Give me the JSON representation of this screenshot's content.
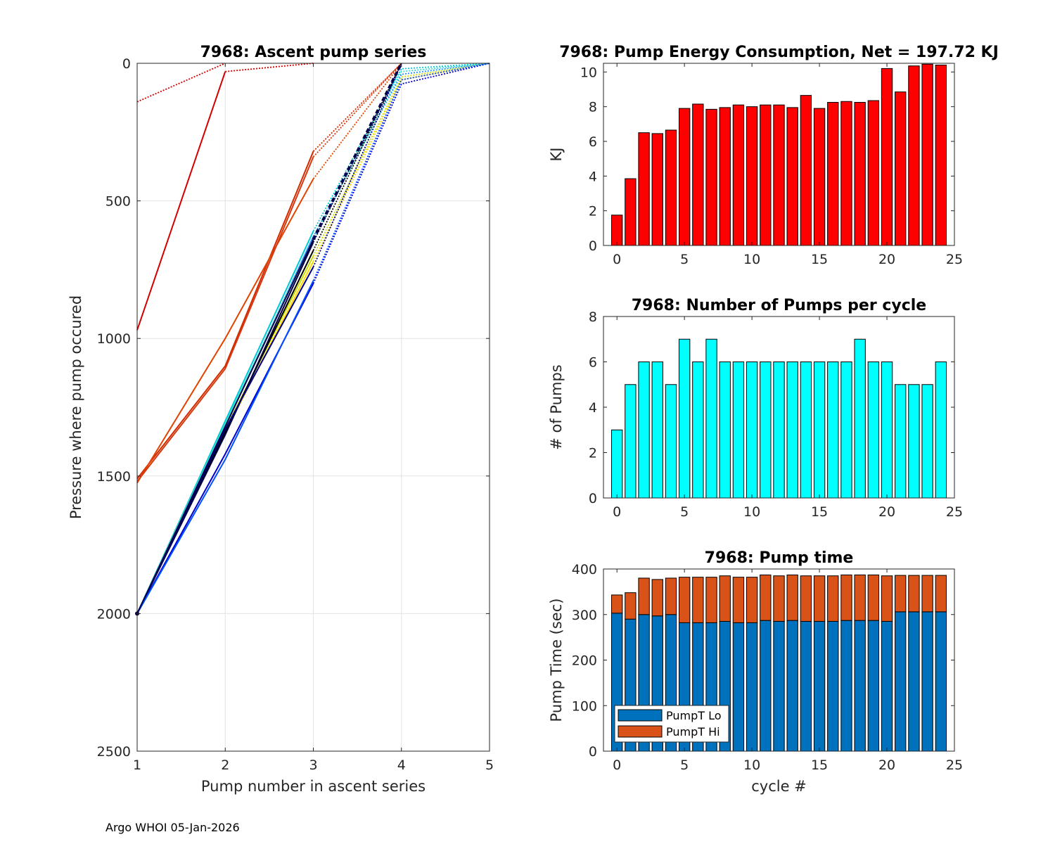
{
  "footer": "Argo WHOI 05-Jan-2026",
  "chart_data": [
    {
      "id": "ascent",
      "type": "line",
      "title": "7968: Ascent pump series",
      "xlabel": "Pump number in ascent series",
      "ylabel": "Pressure where pump occured",
      "xlim": [
        1,
        5
      ],
      "ylim": [
        0,
        2500
      ],
      "y_reversed": true,
      "xticks": [
        1,
        2,
        3,
        4,
        5
      ],
      "yticks": [
        0,
        500,
        1000,
        1500,
        2000,
        2500
      ],
      "grid": true,
      "series": [
        {
          "color": "#d40000",
          "x": [
            1,
            2
          ],
          "y": [
            970,
            30
          ],
          "style": "solid"
        },
        {
          "color": "#d40000",
          "x": [
            2,
            3
          ],
          "y": [
            30,
            0
          ],
          "style": "dotted"
        },
        {
          "color": "#d40000",
          "x": [
            1,
            2
          ],
          "y": [
            140,
            0
          ],
          "style": "dotted"
        },
        {
          "color": "#d42a00",
          "x": [
            1,
            2,
            3
          ],
          "y": [
            1510,
            1100,
            320
          ],
          "style": "solid"
        },
        {
          "color": "#d42a00",
          "x": [
            3,
            4
          ],
          "y": [
            320,
            0
          ],
          "style": "dotted"
        },
        {
          "color": "#e04400",
          "x": [
            1,
            2,
            3
          ],
          "y": [
            1525,
            1000,
            420
          ],
          "style": "solid"
        },
        {
          "color": "#e04400",
          "x": [
            3,
            4
          ],
          "y": [
            420,
            0
          ],
          "style": "dotted"
        },
        {
          "color": "#d43a10",
          "x": [
            1,
            2,
            3
          ],
          "y": [
            1520,
            1110,
            340
          ],
          "style": "solid"
        },
        {
          "color": "#d43a10",
          "x": [
            3,
            4
          ],
          "y": [
            340,
            0
          ],
          "style": "dotted"
        },
        {
          "color": "#00c8d4",
          "x": [
            1,
            2,
            3
          ],
          "y": [
            2000,
            1300,
            610
          ],
          "style": "solid"
        },
        {
          "color": "#00c8d4",
          "x": [
            3,
            4,
            5
          ],
          "y": [
            610,
            20,
            0
          ],
          "style": "dotted"
        },
        {
          "color": "#1e90ff",
          "x": [
            1,
            2,
            3
          ],
          "y": [
            2000,
            1320,
            630
          ],
          "style": "solid"
        },
        {
          "color": "#1e90ff",
          "x": [
            3,
            4,
            5
          ],
          "y": [
            630,
            40,
            0
          ],
          "style": "dotted"
        },
        {
          "color": "#40e0d0",
          "x": [
            1,
            2,
            3
          ],
          "y": [
            2000,
            1310,
            640
          ],
          "style": "solid"
        },
        {
          "color": "#40e0d0",
          "x": [
            3,
            4,
            5
          ],
          "y": [
            640,
            30,
            0
          ],
          "style": "dotted"
        },
        {
          "color": "#c8e000",
          "x": [
            1,
            2,
            3
          ],
          "y": [
            2000,
            1330,
            700
          ],
          "style": "solid"
        },
        {
          "color": "#c8e000",
          "x": [
            3,
            4,
            5
          ],
          "y": [
            700,
            50,
            0
          ],
          "style": "dotted"
        },
        {
          "color": "#ffd700",
          "x": [
            1,
            2,
            3
          ],
          "y": [
            2000,
            1340,
            720
          ],
          "style": "solid"
        },
        {
          "color": "#ffd700",
          "x": [
            3,
            4,
            5
          ],
          "y": [
            720,
            60,
            0
          ],
          "style": "dotted"
        },
        {
          "color": "#000000",
          "x": [
            1,
            2,
            3
          ],
          "y": [
            2000,
            1340,
            680
          ],
          "style": "solid"
        },
        {
          "color": "#000000",
          "x": [
            3,
            4
          ],
          "y": [
            680,
            0
          ],
          "style": "dotted"
        },
        {
          "color": "#000040",
          "x": [
            1,
            2,
            3
          ],
          "y": [
            2000,
            1350,
            650
          ],
          "style": "solid"
        },
        {
          "color": "#000040",
          "x": [
            3,
            4
          ],
          "y": [
            650,
            0
          ],
          "style": "dotted"
        },
        {
          "color": "#000080",
          "x": [
            1,
            2,
            3
          ],
          "y": [
            2000,
            1330,
            740
          ],
          "style": "solid"
        },
        {
          "color": "#000080",
          "x": [
            3,
            4
          ],
          "y": [
            740,
            0
          ],
          "style": "dotted"
        },
        {
          "color": "#0000cd",
          "x": [
            1,
            2,
            3
          ],
          "y": [
            2000,
            1420,
            800
          ],
          "style": "solid"
        },
        {
          "color": "#0000cd",
          "x": [
            3,
            4,
            5
          ],
          "y": [
            800,
            75,
            0
          ],
          "style": "dotted"
        },
        {
          "color": "#0050ff",
          "x": [
            1,
            2,
            3
          ],
          "y": [
            2000,
            1440,
            790
          ],
          "style": "solid"
        },
        {
          "color": "#0050ff",
          "x": [
            3,
            4,
            5
          ],
          "y": [
            790,
            60,
            0
          ],
          "style": "dotted"
        },
        {
          "color": "#000050",
          "x": [
            1,
            2,
            3
          ],
          "y": [
            2000,
            1320,
            640
          ],
          "style": "solid"
        },
        {
          "color": "#000050",
          "x": [
            3,
            4
          ],
          "y": [
            640,
            0
          ],
          "style": "dashed"
        }
      ]
    },
    {
      "id": "energy",
      "type": "bar",
      "title": "7968: Pump Energy Consumption,  Net = 197.72 KJ",
      "xlabel": "",
      "ylabel": "KJ",
      "xlim": [
        -1,
        25
      ],
      "ylim": [
        0,
        10.5
      ],
      "xticks": [
        0,
        5,
        10,
        15,
        20,
        25
      ],
      "yticks": [
        0,
        2,
        4,
        6,
        8,
        10
      ],
      "color": "#ff0000",
      "categories": [
        0,
        1,
        2,
        3,
        4,
        5,
        6,
        7,
        8,
        9,
        10,
        11,
        12,
        13,
        14,
        15,
        16,
        17,
        18,
        19,
        20,
        21,
        22,
        23,
        24
      ],
      "values": [
        1.75,
        3.85,
        6.5,
        6.45,
        6.65,
        7.9,
        8.15,
        7.85,
        7.95,
        8.1,
        8.0,
        8.1,
        8.1,
        7.95,
        8.65,
        7.9,
        8.25,
        8.3,
        8.25,
        8.35,
        10.2,
        8.85,
        10.35,
        10.45,
        10.4
      ]
    },
    {
      "id": "pumps",
      "type": "bar",
      "title": "7968: Number of Pumps per cycle",
      "xlabel": "",
      "ylabel": "# of Pumps",
      "xlim": [
        -1,
        25
      ],
      "ylim": [
        0,
        8
      ],
      "xticks": [
        0,
        5,
        10,
        15,
        20,
        25
      ],
      "yticks": [
        0,
        2,
        4,
        6,
        8
      ],
      "color": "#00ffff",
      "categories": [
        0,
        1,
        2,
        3,
        4,
        5,
        6,
        7,
        8,
        9,
        10,
        11,
        12,
        13,
        14,
        15,
        16,
        17,
        18,
        19,
        20,
        21,
        22,
        23,
        24
      ],
      "values": [
        3,
        5,
        6,
        6,
        5,
        7,
        6,
        7,
        6,
        6,
        6,
        6,
        6,
        6,
        6,
        6,
        6,
        6,
        7,
        6,
        6,
        5,
        5,
        5,
        6
      ]
    },
    {
      "id": "pumptime",
      "type": "bar",
      "stacked": true,
      "title": "7968: Pump time",
      "xlabel": "cycle #",
      "ylabel": "Pump Time (sec)",
      "xlim": [
        -1,
        25
      ],
      "ylim": [
        0,
        400
      ],
      "xticks": [
        0,
        5,
        10,
        15,
        20,
        25
      ],
      "yticks": [
        0,
        100,
        200,
        300,
        400
      ],
      "legend_position": "bottom-left",
      "categories": [
        0,
        1,
        2,
        3,
        4,
        5,
        6,
        7,
        8,
        9,
        10,
        11,
        12,
        13,
        14,
        15,
        16,
        17,
        18,
        19,
        20,
        21,
        22,
        23,
        24
      ],
      "series": [
        {
          "name": "PumpT Lo",
          "color": "#0072bd",
          "values": [
            303,
            290,
            300,
            297,
            300,
            282,
            282,
            282,
            285,
            282,
            282,
            287,
            285,
            287,
            285,
            285,
            285,
            287,
            287,
            287,
            285,
            306,
            306,
            306,
            306
          ]
        },
        {
          "name": "PumpT Hi",
          "color": "#d95319",
          "values": [
            40,
            58,
            80,
            80,
            80,
            100,
            100,
            100,
            100,
            100,
            100,
            100,
            100,
            100,
            100,
            100,
            100,
            100,
            100,
            100,
            100,
            80,
            80,
            80,
            80
          ]
        }
      ]
    }
  ]
}
